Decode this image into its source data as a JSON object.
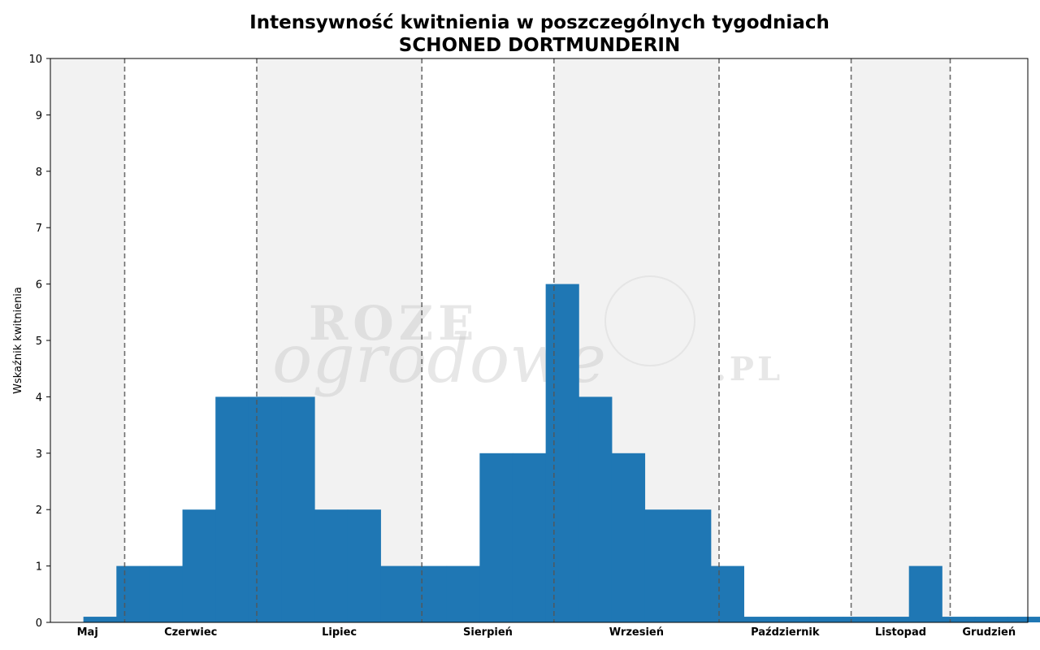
{
  "chart_data": {
    "type": "bar",
    "title": "Intensywność kwitnienia w poszczególnych tygodniach",
    "subtitle": "SCHONED DORTMUNDERIN",
    "xlabel": "",
    "ylabel": "Wskaźnik kwitnienia",
    "ylim": [
      0,
      10
    ],
    "yticks": [
      "0",
      "1",
      "2",
      "3",
      "4",
      "5",
      "6",
      "7",
      "8",
      "9",
      "10"
    ],
    "grid": false,
    "bar_color": "#1f77b4",
    "band_color": "#f2f2f2",
    "separator_color": "#555555",
    "x_start_week": 19,
    "x_end_week": 48.6,
    "weeks": [
      19,
      20,
      21,
      22,
      23,
      24,
      25,
      26,
      27,
      28,
      29,
      30,
      31,
      32,
      33,
      34,
      35,
      36,
      37,
      38,
      39,
      40,
      41,
      42,
      43,
      44,
      45,
      46,
      47,
      48
    ],
    "values": [
      0,
      0.1,
      1,
      1,
      2,
      4,
      4,
      4,
      2,
      2,
      1,
      1,
      1,
      3,
      3,
      6,
      4,
      3,
      2,
      2,
      1,
      0.1,
      0.1,
      0.1,
      0.1,
      0.1,
      1,
      0.1,
      0.1,
      0.1
    ],
    "months": [
      {
        "name": "Maj",
        "start": 19,
        "end": 21.25,
        "shaded": true
      },
      {
        "name": "Czerwiec",
        "start": 21.25,
        "end": 25.25,
        "shaded": false
      },
      {
        "name": "Lipiec",
        "start": 25.25,
        "end": 30.25,
        "shaded": true
      },
      {
        "name": "Sierpień",
        "start": 30.25,
        "end": 34.25,
        "shaded": false
      },
      {
        "name": "Wrzesień",
        "start": 34.25,
        "end": 39.25,
        "shaded": true
      },
      {
        "name": "Październik",
        "start": 39.25,
        "end": 43.25,
        "shaded": false
      },
      {
        "name": "Listopad",
        "start": 43.25,
        "end": 46.25,
        "shaded": true
      },
      {
        "name": "Grudzień",
        "start": 46.25,
        "end": 48.6,
        "shaded": false
      }
    ],
    "watermark": {
      "line1": "ROZE",
      "line2": "ogrodowe",
      "line3": ".PL"
    }
  }
}
